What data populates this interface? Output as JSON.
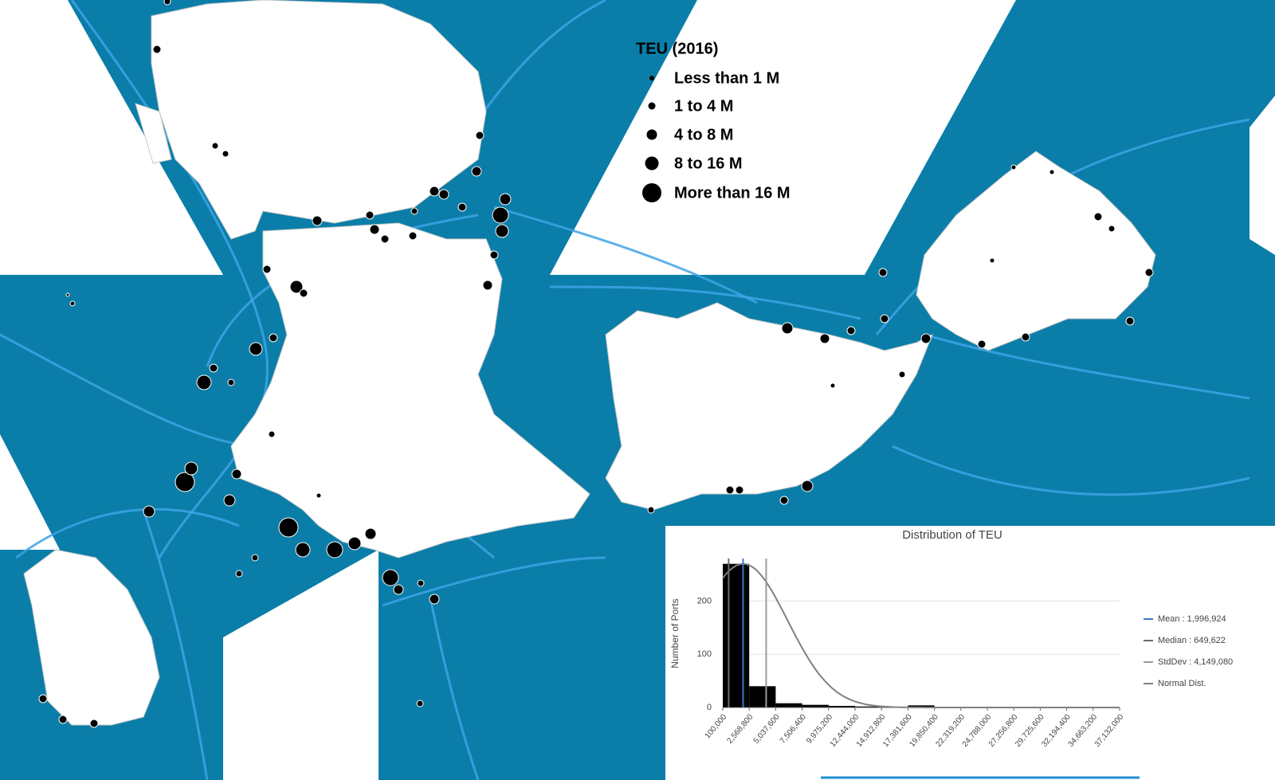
{
  "map": {
    "legend": {
      "title": "TEU (2016)",
      "items": [
        "Less than 1 M",
        "1 to 4 M",
        "4 to 8 M",
        "8 to 16 M",
        "More than 16 M"
      ]
    }
  },
  "chart_data": {
    "type": "histogram",
    "title": "Distribution of TEU",
    "ylabel": "Number of Ports",
    "bins": [
      100000,
      2568800,
      5037600,
      7506400,
      9975200,
      12444000,
      14912800,
      17381600,
      19850400,
      22319200,
      24788000,
      27256800,
      29725600,
      32194400,
      34663200,
      37132000
    ],
    "values": [
      270,
      40,
      8,
      5,
      3,
      2,
      1,
      4,
      0,
      0,
      0,
      0,
      0,
      0,
      0
    ],
    "color": "#000000",
    "xlim": [
      100000,
      37132000
    ],
    "ylim": [
      0,
      280
    ],
    "xticks": [
      {
        "value": 100000,
        "label": "100,000"
      },
      {
        "value": 2568800,
        "label": "2,568,800"
      },
      {
        "value": 5037600,
        "label": "5,037,600"
      },
      {
        "value": 7506400,
        "label": "7,506,400"
      },
      {
        "value": 9975200,
        "label": "9,975,200"
      },
      {
        "value": 12444000,
        "label": "12,444,000"
      },
      {
        "value": 14912800,
        "label": "14,912,800"
      },
      {
        "value": 17381600,
        "label": "17,381,600"
      },
      {
        "value": 19850400,
        "label": "19,850,400"
      },
      {
        "value": 22319200,
        "label": "22,319,200"
      },
      {
        "value": 24788000,
        "label": "24,788,000"
      },
      {
        "value": 27256800,
        "label": "27,256,800"
      },
      {
        "value": 29725600,
        "label": "29,725,600"
      },
      {
        "value": 32194400,
        "label": "32,194,400"
      },
      {
        "value": 34663200,
        "label": "34,663,200"
      },
      {
        "value": 37132000,
        "label": "37,132,000"
      }
    ],
    "yticks": [
      0,
      100,
      200
    ],
    "grid": true,
    "reference_lines": [
      {
        "label": "Mean : 1,996,924",
        "value": 1996924,
        "color": "#3a78c9"
      },
      {
        "label": "Median : 649,622",
        "value": 649622,
        "color": "#6b6b6b"
      },
      {
        "label": "StdDev : 4,149,080",
        "value": 4149080,
        "color": "#9a9a9a"
      }
    ],
    "normal_curve": {
      "label": "Normal Dist.",
      "color": "#808080"
    }
  }
}
